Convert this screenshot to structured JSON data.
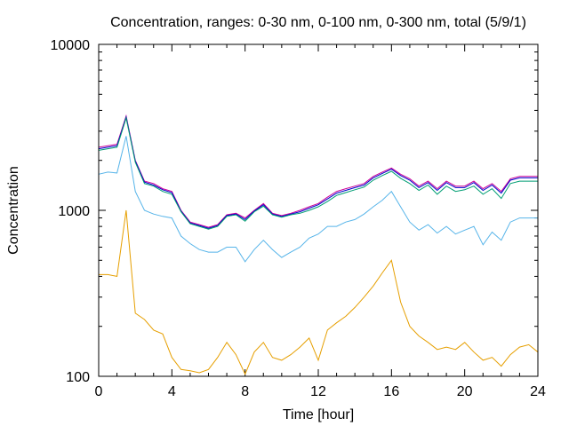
{
  "chart_data": {
    "type": "line",
    "title": "Concentration, ranges: 0-30 nm, 0-100 nm, 0-300 nm, total (5/9/1)",
    "xlabel": "Time [hour]",
    "ylabel": "Concentration",
    "xlim": [
      0,
      24
    ],
    "ylim": [
      100,
      10000
    ],
    "yscale": "log",
    "grid": false,
    "x_ticks": [
      "0",
      "4",
      "8",
      "12",
      "16",
      "20",
      "24"
    ],
    "y_ticks": [
      "100",
      "1000",
      "10000"
    ],
    "x": [
      0,
      0.5,
      1,
      1.5,
      2,
      2.5,
      3,
      3.5,
      4,
      4.5,
      5,
      5.5,
      6,
      6.5,
      7,
      7.5,
      8,
      8.5,
      9,
      9.5,
      10,
      10.5,
      11,
      11.5,
      12,
      12.5,
      13,
      13.5,
      14,
      14.5,
      15,
      15.5,
      16,
      16.5,
      17,
      17.5,
      18,
      18.5,
      19,
      19.5,
      20,
      20.5,
      21,
      21.5,
      22,
      22.5,
      23,
      23.5,
      24
    ],
    "series": [
      {
        "color": "#cc0099",
        "values": [
          2400,
          2450,
          2500,
          3700,
          2000,
          1500,
          1450,
          1350,
          1300,
          1000,
          850,
          820,
          790,
          820,
          940,
          960,
          900,
          1000,
          1100,
          960,
          930,
          960,
          1000,
          1050,
          1100,
          1200,
          1300,
          1350,
          1400,
          1450,
          1600,
          1700,
          1800,
          1650,
          1550,
          1400,
          1500,
          1350,
          1500,
          1400,
          1400,
          1500,
          1350,
          1450,
          1300,
          1550,
          1600,
          1600,
          1600
        ]
      },
      {
        "color": "#0000cc",
        "values": [
          2350,
          2400,
          2450,
          3650,
          1980,
          1480,
          1420,
          1330,
          1280,
          990,
          840,
          810,
          780,
          810,
          930,
          950,
          880,
          990,
          1080,
          950,
          920,
          950,
          980,
          1030,
          1080,
          1170,
          1270,
          1320,
          1370,
          1420,
          1570,
          1670,
          1770,
          1620,
          1520,
          1370,
          1470,
          1320,
          1470,
          1370,
          1370,
          1470,
          1320,
          1420,
          1270,
          1520,
          1570,
          1570,
          1570
        ]
      },
      {
        "color": "#009e73",
        "values": [
          2300,
          2350,
          2400,
          3600,
          1950,
          1450,
          1400,
          1300,
          1250,
          980,
          830,
          800,
          770,
          800,
          920,
          940,
          860,
          980,
          1060,
          940,
          910,
          940,
          960,
          1000,
          1050,
          1130,
          1230,
          1280,
          1330,
          1380,
          1520,
          1620,
          1720,
          1560,
          1450,
          1320,
          1420,
          1250,
          1400,
          1300,
          1330,
          1400,
          1250,
          1350,
          1180,
          1450,
          1500,
          1500,
          1500
        ]
      },
      {
        "color": "#56b4e9",
        "values": [
          1650,
          1700,
          1680,
          2800,
          1300,
          1000,
          950,
          920,
          900,
          700,
          630,
          580,
          560,
          560,
          600,
          600,
          490,
          580,
          660,
          580,
          520,
          560,
          600,
          680,
          720,
          800,
          800,
          850,
          880,
          950,
          1050,
          1150,
          1300,
          1050,
          850,
          760,
          820,
          730,
          800,
          720,
          760,
          800,
          620,
          740,
          660,
          850,
          900,
          900,
          900
        ]
      },
      {
        "color": "#e69f00",
        "values": [
          410,
          410,
          400,
          1000,
          240,
          220,
          190,
          180,
          130,
          110,
          108,
          105,
          110,
          130,
          160,
          135,
          103,
          140,
          160,
          130,
          125,
          135,
          150,
          170,
          125,
          190,
          210,
          230,
          260,
          300,
          350,
          420,
          500,
          280,
          200,
          175,
          160,
          145,
          150,
          145,
          160,
          140,
          125,
          130,
          115,
          135,
          150,
          155,
          140
        ]
      }
    ]
  }
}
